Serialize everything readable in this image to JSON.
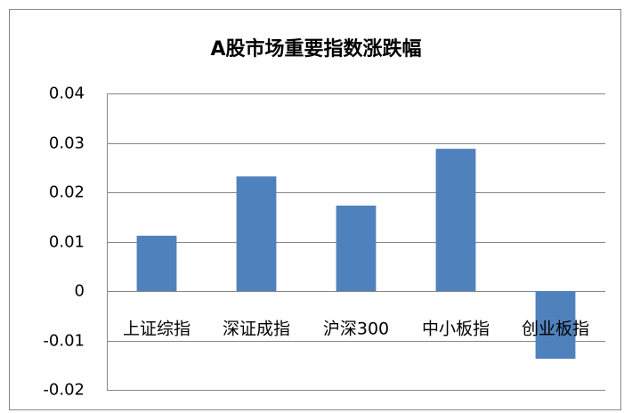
{
  "chart_data": {
    "type": "bar",
    "title": "A股市场重要指数涨跌幅",
    "categories": [
      "上证综指",
      "深证成指",
      "沪深300",
      "中小板指",
      "创业板指"
    ],
    "values": [
      0.0112,
      0.0232,
      0.0173,
      0.0288,
      -0.0137
    ],
    "color": "#4f81bd",
    "ylim": [
      -0.02,
      0.04
    ],
    "yticks": [
      -0.02,
      -0.01,
      0,
      0.01,
      0.02,
      0.03,
      0.04
    ],
    "grid": true
  }
}
